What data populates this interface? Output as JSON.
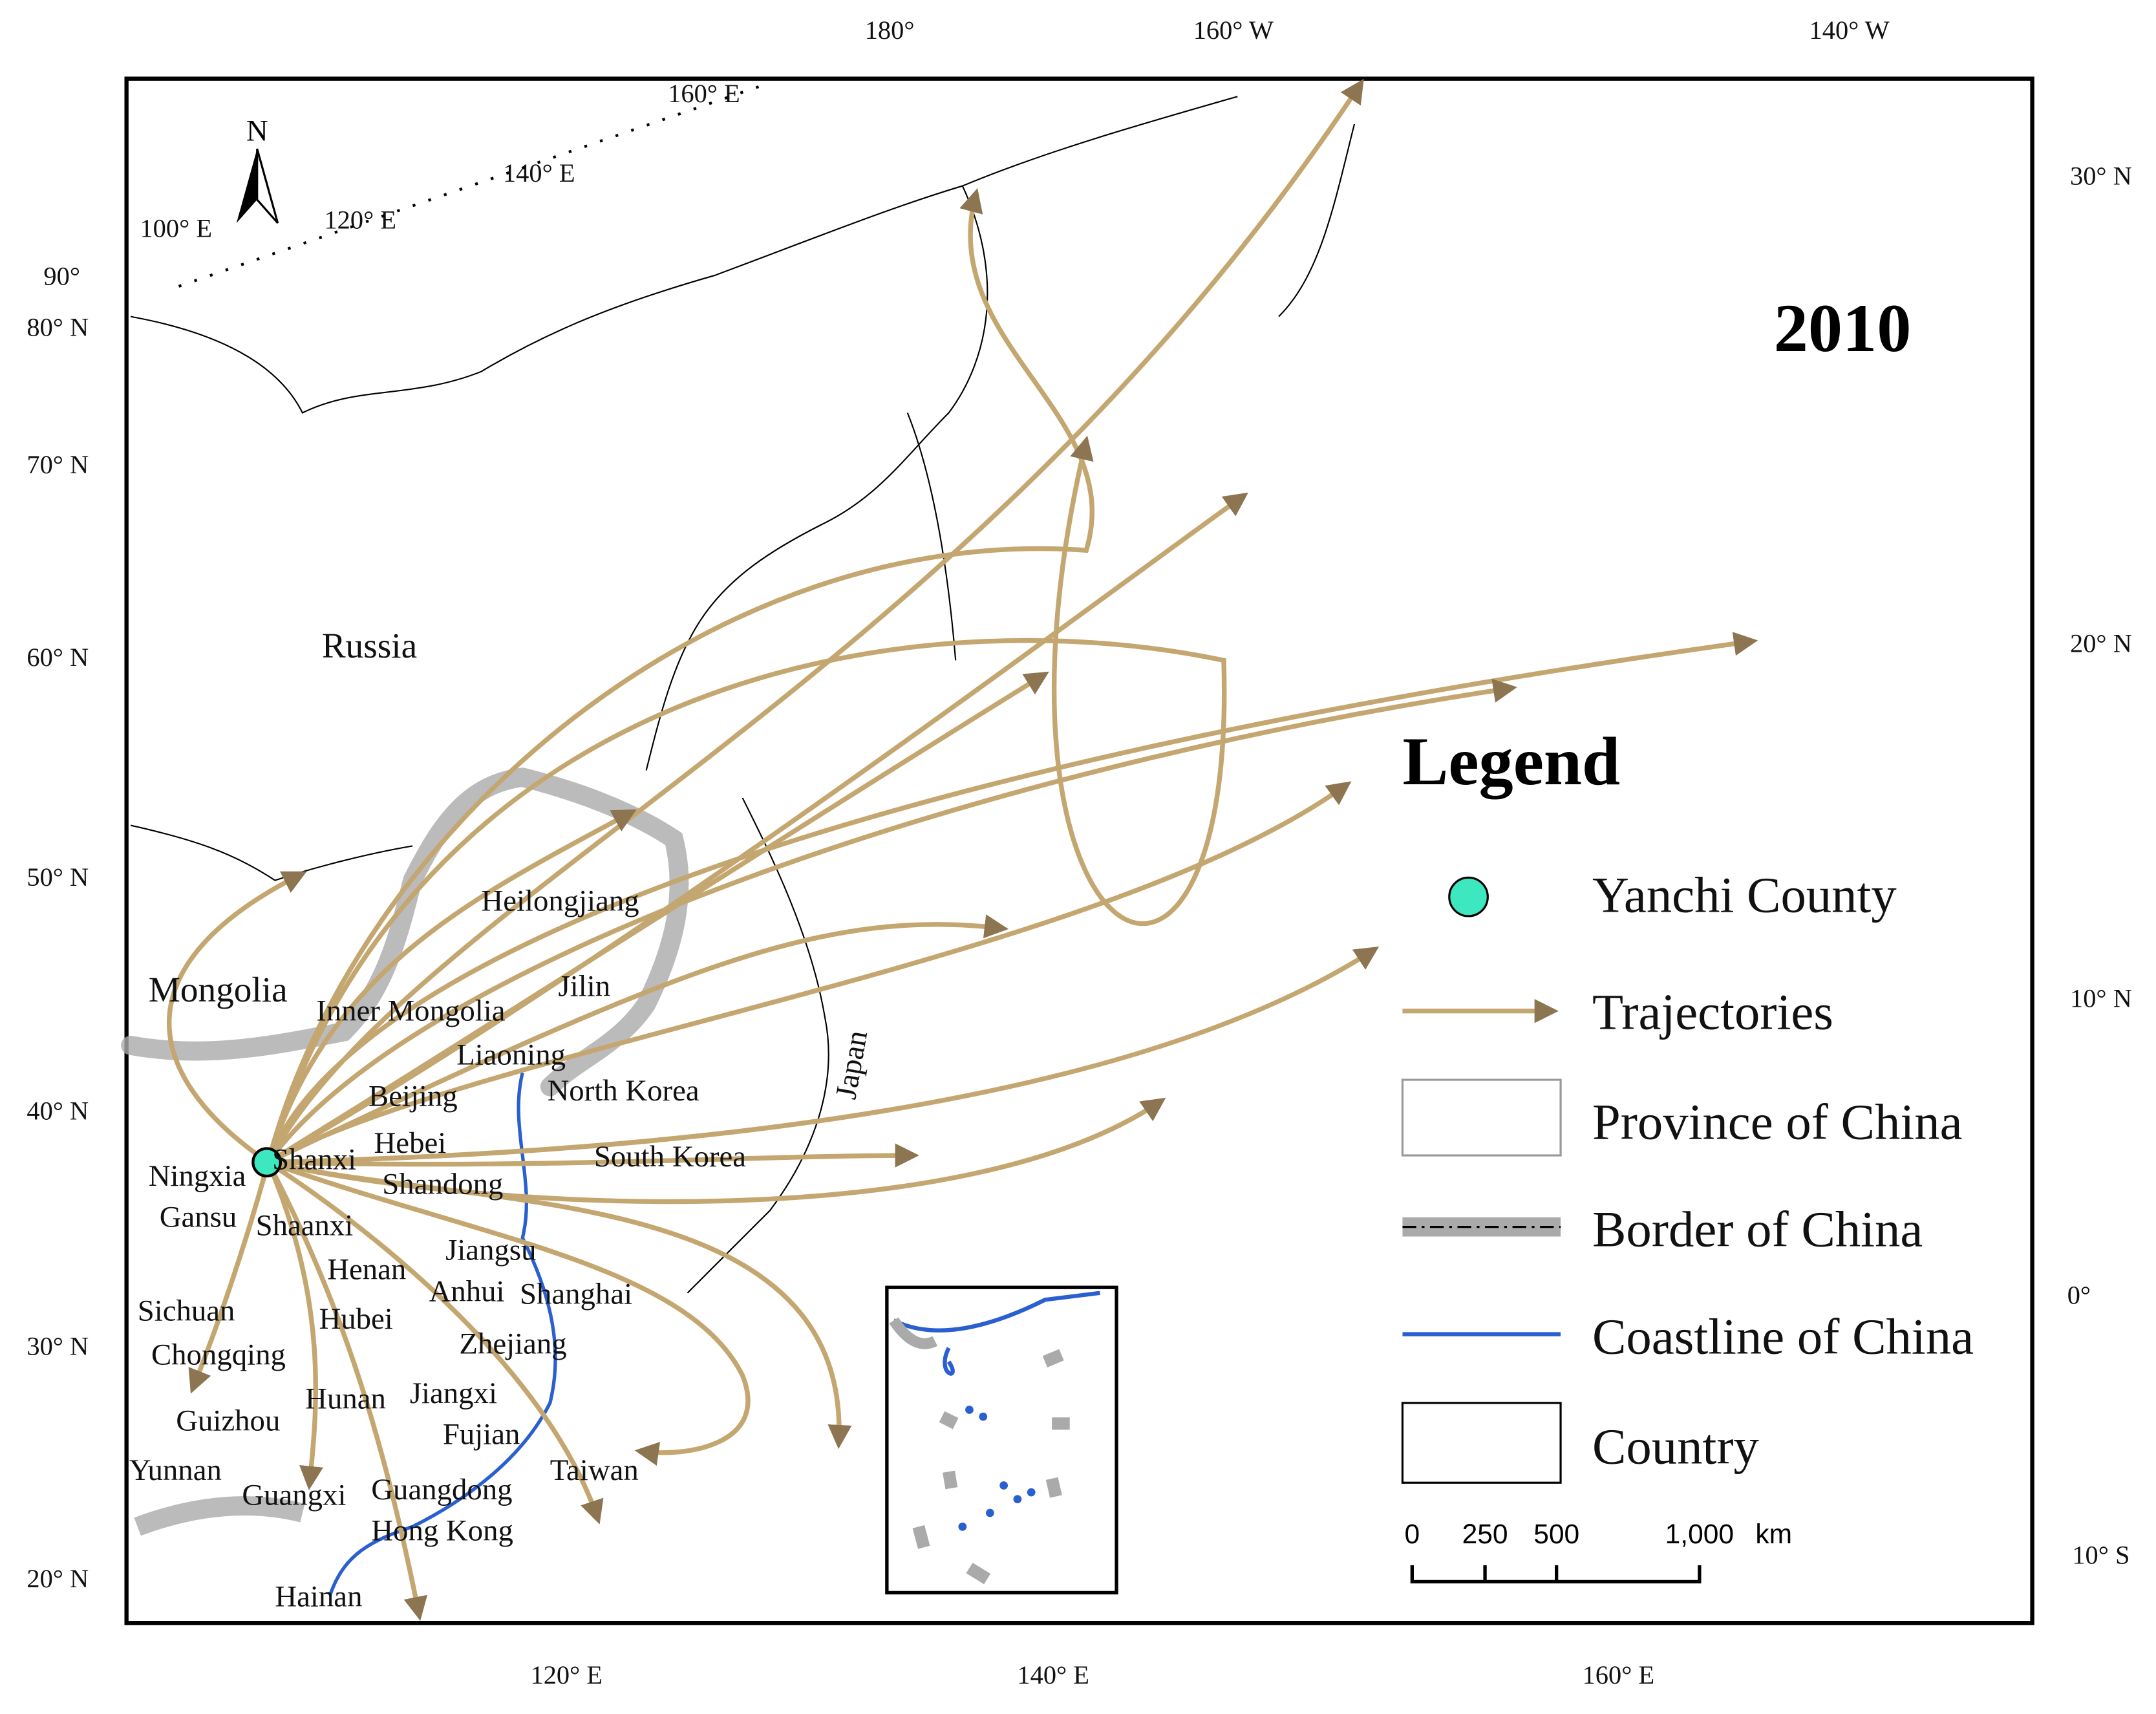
{
  "title": "2010",
  "north_label": "N",
  "graticule_labels": {
    "top": [
      "180°",
      "160° W",
      "140° W"
    ],
    "bottom": [
      "120° E",
      "140° E",
      "160° E"
    ],
    "left": [
      "90°",
      "80° N",
      "70° N",
      "60° N",
      "50° N",
      "40° N",
      "30° N",
      "20° N"
    ],
    "right": [
      "30° N",
      "20° N",
      "10° N",
      "0°",
      "10° S"
    ],
    "inner": [
      "100° E",
      "120° E",
      "140° E",
      "160° E"
    ]
  },
  "places": [
    "Russia",
    "Mongolia",
    "Inner Mongolia",
    "Heilongjiang",
    "Jilin",
    "Liaoning",
    "Beijing",
    "North Korea",
    "Hebei",
    "Shanxi",
    "Ningxia",
    "Shandong",
    "South Korea",
    "Gansu",
    "Shaanxi",
    "Jiangsu",
    "Henan",
    "Anhui",
    "Shanghai",
    "Sichuan",
    "Hubei",
    "Chongqing",
    "Zhejiang",
    "Jiangxi",
    "Hunan",
    "Guizhou",
    "Fujian",
    "Yunnan",
    "Taiwan",
    "Guangxi",
    "Guangdong",
    "Hong Kong",
    "Hainan",
    "Japan"
  ],
  "legend": {
    "title": "Legend",
    "items": [
      "Yanchi County",
      "Trajectories",
      "Province of China",
      "Border of China",
      "Coastline of China",
      "Country"
    ]
  },
  "scale_bar": {
    "labels": [
      "0",
      "250",
      "500",
      "1,000",
      "km"
    ]
  }
}
